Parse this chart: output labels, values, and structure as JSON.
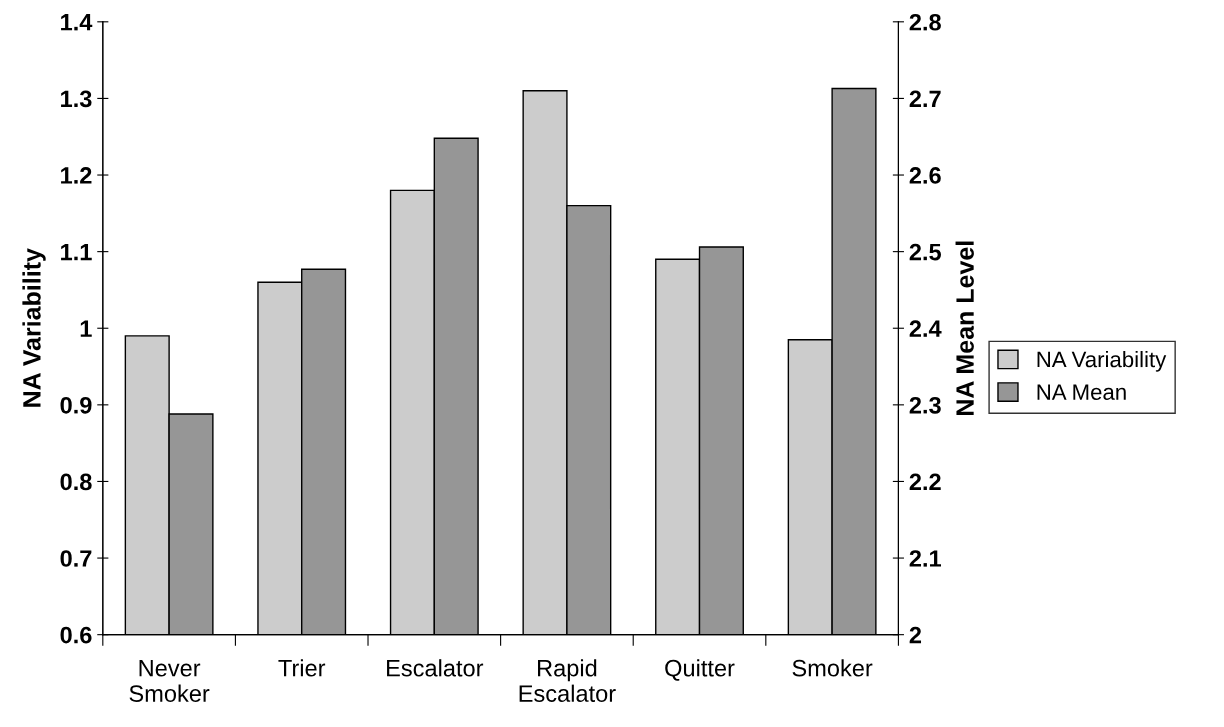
{
  "chart_data": {
    "type": "bar",
    "categories": [
      "Never\nSmoker",
      "Trier",
      "Escalator",
      "Rapid\nEscalator",
      "Quitter",
      "Smoker"
    ],
    "series": [
      {
        "name": "NA Variability",
        "color": "#cccccc",
        "values": [
          0.99,
          1.06,
          1.18,
          1.31,
          1.09,
          0.985
        ]
      },
      {
        "name": "NA Mean",
        "color": "#969696",
        "axis": "y2",
        "values": [
          2.288,
          2.477,
          2.648,
          2.56,
          2.506,
          2.713
        ]
      }
    ],
    "ylabel": "NA Variability",
    "y2label": "NA Mean Level",
    "ylim": [
      0.6,
      1.4
    ],
    "yticks": [
      0.6,
      0.7,
      0.8,
      0.9,
      {
        "value": 1.0,
        "label": "1"
      },
      1.1,
      1.2,
      1.3,
      1.4
    ],
    "y2lim": [
      2.0,
      2.8
    ],
    "y2ticks": [
      {
        "value": 2.0,
        "label": "2"
      },
      2.1,
      2.2,
      2.3,
      2.4,
      2.5,
      2.6,
      2.7,
      2.8
    ],
    "legend": "right",
    "grid": false
  }
}
